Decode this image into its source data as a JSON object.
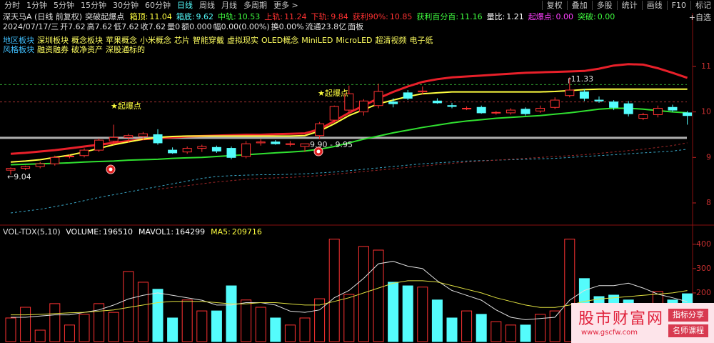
{
  "toolbar": {
    "left": [
      "分时",
      "1分钟",
      "5分钟",
      "15分钟",
      "30分钟",
      "60分钟",
      "日线",
      "周线",
      "月线",
      "多周期",
      "更多 >"
    ],
    "right": [
      "复权",
      "叠加",
      "多股",
      "统计",
      "画线",
      "F10",
      "标记"
    ],
    "extra": "+自选"
  },
  "header": {
    "stock": "深天马A (日线 前复权)",
    "indicator": "突破起爆点",
    "fields": [
      {
        "label": "箱顶:",
        "value": "11.04",
        "color": "#ffff40"
      },
      {
        "label": "箱底:",
        "value": "9.62",
        "color": "#54fcfc"
      },
      {
        "label": "中轨:",
        "value": "10.53",
        "color": "#40ff40"
      },
      {
        "label": "上轨:",
        "value": "11.24",
        "color": "#ff3232"
      },
      {
        "label": "下轨:",
        "value": "9.84",
        "color": "#ff3232"
      },
      {
        "label": "获利90%:",
        "value": "10.85",
        "color": "#ff3232"
      },
      {
        "label": "获利百分百:",
        "value": "11.16",
        "color": "#40ff40"
      },
      {
        "label": "量比:",
        "value": "1.21",
        "color": "#ffffff"
      },
      {
        "label": "起爆点:",
        "value": "0.00",
        "color": "#ff40ff"
      },
      {
        "label": "突破:",
        "value": "0.00",
        "color": "#40ff40"
      }
    ],
    "info": [
      "2024/07/17/三",
      "开7.62",
      "高7.62",
      "低7.62",
      "收7.62",
      "量0",
      "额0.000",
      "幅0.00(0.00%)",
      "换0.00%",
      "流通23.8亿",
      "面板"
    ],
    "tags": [
      [
        "地区板块",
        "深圳板块",
        "概念板块",
        "苹果概念",
        "小米概念",
        "芯片",
        "智能穿戴",
        "虚拟现实",
        "OLED概念",
        "MiniLED",
        "MicroLED",
        "超清视频",
        "电子纸"
      ],
      [
        "风格板块",
        "融资融券",
        "破净资产",
        "深股通标的"
      ]
    ]
  },
  "chart_data": [
    {
      "type": "candlestick",
      "up_color": "#ff3232",
      "down_color": "#54fcfc",
      "open": [
        8.72,
        8.76,
        8.8,
        8.86,
        9.02,
        9.04,
        9.16,
        9.36,
        9.44,
        9.46,
        9.5,
        9.16,
        9.12,
        9.2,
        9.22,
        9.2,
        9.02,
        9.32,
        9.34,
        9.3,
        9.24,
        9.48,
        9.82,
        10.04,
        10.0,
        10.14,
        10.22,
        10.42,
        10.44,
        10.24,
        10.14,
        10.08,
        10.1,
        9.98,
        9.98,
        10.06,
        10.02,
        10.1,
        10.36,
        10.44,
        10.26,
        10.22,
        10.18,
        9.86,
        9.94,
        10.1,
        9.98
      ],
      "high": [
        8.78,
        8.82,
        8.9,
        9.04,
        9.06,
        9.2,
        9.42,
        9.72,
        9.52,
        9.56,
        9.62,
        9.22,
        9.24,
        9.28,
        9.26,
        9.24,
        9.36,
        9.4,
        9.38,
        9.36,
        9.3,
        9.78,
        10.14,
        10.58,
        10.28,
        10.62,
        10.3,
        10.48,
        10.56,
        10.3,
        10.2,
        10.12,
        10.14,
        10.02,
        10.08,
        10.1,
        10.14,
        10.32,
        10.76,
        10.5,
        10.34,
        10.26,
        10.24,
        9.98,
        10.14,
        10.16,
        10.02
      ],
      "low": [
        8.62,
        8.72,
        8.76,
        8.82,
        8.98,
        9.0,
        9.12,
        9.28,
        9.32,
        9.38,
        9.28,
        9.08,
        9.08,
        9.12,
        9.1,
        8.96,
        8.98,
        9.26,
        9.28,
        9.24,
        9.12,
        9.4,
        9.76,
        9.98,
        9.92,
        10.08,
        10.1,
        10.26,
        10.38,
        10.18,
        10.08,
        10.04,
        9.96,
        9.94,
        9.94,
        9.92,
        9.98,
        10.06,
        10.32,
        10.24,
        10.2,
        10.04,
        9.9,
        9.82,
        9.88,
        10.0,
        9.72
      ],
      "close": [
        8.76,
        8.8,
        8.86,
        9.0,
        9.03,
        9.16,
        9.38,
        9.44,
        9.48,
        9.52,
        9.32,
        9.1,
        9.2,
        9.24,
        9.14,
        9.0,
        9.3,
        9.34,
        9.3,
        9.3,
        9.3,
        9.74,
        10.12,
        10.4,
        10.24,
        10.45,
        10.18,
        10.3,
        10.46,
        10.2,
        10.12,
        10.08,
        9.98,
        9.99,
        10.04,
        9.96,
        10.08,
        10.26,
        10.48,
        10.3,
        10.24,
        10.1,
        9.96,
        9.94,
        10.08,
        10.04,
        9.92
      ],
      "lines": [
        {
          "color": "#e8202a",
          "width": 3,
          "dash": false,
          "values": [
            9.08,
            9.1,
            9.13,
            9.16,
            9.2,
            9.24,
            9.28,
            9.32,
            9.36,
            9.4,
            9.42,
            9.44,
            9.46,
            9.47,
            9.48,
            9.49,
            9.5,
            9.5,
            9.51,
            9.52,
            9.53,
            9.62,
            9.8,
            9.98,
            10.14,
            10.3,
            10.44,
            10.56,
            10.66,
            10.72,
            10.76,
            10.78,
            10.8,
            10.82,
            10.84,
            10.86,
            10.87,
            10.88,
            10.89,
            10.9,
            10.95,
            11.02,
            11.05,
            11.04,
            10.96,
            10.86,
            10.75
          ]
        },
        {
          "color": "#ffff40",
          "width": 2,
          "dash": false,
          "values": [
            8.9,
            8.92,
            8.95,
            9.0,
            9.05,
            9.12,
            9.2,
            9.28,
            9.34,
            9.4,
            9.44,
            9.46,
            9.47,
            9.47,
            9.47,
            9.47,
            9.47,
            9.47,
            9.47,
            9.47,
            9.48,
            9.58,
            9.74,
            9.92,
            10.05,
            10.18,
            10.26,
            10.34,
            10.4,
            10.42,
            10.44,
            10.44,
            10.44,
            10.44,
            10.44,
            10.44,
            10.44,
            10.45,
            10.47,
            10.49,
            10.5,
            10.5,
            10.5,
            10.5,
            10.5,
            10.5,
            10.5
          ]
        },
        {
          "color": "#30e030",
          "width": 2,
          "dash": false,
          "values": [
            8.84,
            8.85,
            8.86,
            8.87,
            8.88,
            8.9,
            8.91,
            8.92,
            8.94,
            8.95,
            8.96,
            8.98,
            8.99,
            9.0,
            9.02,
            9.04,
            9.06,
            9.08,
            9.1,
            9.12,
            9.14,
            9.18,
            9.24,
            9.32,
            9.4,
            9.47,
            9.54,
            9.6,
            9.66,
            9.71,
            9.76,
            9.8,
            9.83,
            9.86,
            9.88,
            9.9,
            9.92,
            9.95,
            9.98,
            10.02,
            10.06,
            10.08,
            10.08,
            10.06,
            10.03,
            10.0,
            9.98
          ]
        },
        {
          "color": "#3aa8c8",
          "width": 1,
          "dash": true,
          "values": [
            7.78,
            7.82,
            7.86,
            7.92,
            7.98,
            8.05,
            8.12,
            8.18,
            8.24,
            8.3,
            8.36,
            8.42,
            8.48,
            8.54,
            8.58,
            8.6,
            8.61,
            8.62,
            8.62,
            8.63,
            8.64,
            8.66,
            8.68,
            8.71,
            8.74,
            8.77,
            8.8,
            8.83,
            8.86,
            8.88,
            8.9,
            8.92,
            8.93,
            8.94,
            8.95,
            8.96,
            8.97,
            8.98,
            9.0,
            9.02,
            9.04,
            9.06,
            9.08,
            9.1,
            9.12,
            9.14,
            9.18
          ]
        },
        {
          "color": "#a02828",
          "width": 1,
          "dash": true,
          "values": [
            null,
            null,
            null,
            null,
            null,
            null,
            null,
            null,
            null,
            null,
            8.3,
            8.34,
            8.38,
            8.42,
            8.46,
            8.49,
            8.52,
            8.54,
            8.55,
            8.56,
            8.58,
            8.6,
            8.63,
            8.66,
            8.69,
            8.72,
            8.75,
            8.78,
            8.81,
            8.84,
            8.87,
            8.9,
            8.92,
            8.94,
            8.96,
            8.98,
            9.0,
            9.02,
            9.04,
            9.06,
            9.09,
            9.12,
            9.15,
            9.18,
            9.22,
            9.26,
            9.32
          ]
        }
      ],
      "levels": [
        {
          "value": 9.43,
          "color": "#b0b0b0",
          "dash": false
        },
        {
          "value": 10.6,
          "color": "#30a030",
          "dash": true
        },
        {
          "value": 10.22,
          "color": "#a03030",
          "dash": true
        }
      ],
      "annotations": [
        "★起爆点",
        "★起爆点",
        "9.90 - 9.95",
        "←9.04",
        "┌11.33"
      ],
      "ylim": [
        7.56,
        12.02
      ],
      "yticks": [
        8,
        9,
        10,
        11
      ]
    },
    {
      "type": "bar",
      "title": "VOL-TDX(5,10)",
      "fields": [
        {
          "label": "VOLUME:",
          "value": "196510",
          "color": "#ffffff"
        },
        {
          "label": "MAVOL1:",
          "value": "164299",
          "color": "#ffffff"
        },
        {
          "label": "MA5:",
          "value": "209716",
          "color": "#ffff40"
        }
      ],
      "values": [
        97,
        141,
        47,
        156,
        68,
        112,
        156,
        120,
        288,
        244,
        215,
        97,
        171,
        126,
        126,
        229,
        171,
        141,
        97,
        68,
        97,
        176,
        421,
        194,
        391,
        376,
        244,
        229,
        224,
        171,
        97,
        126,
        112,
        82,
        68,
        68,
        112,
        126,
        421,
        259,
        185,
        191,
        171,
        141,
        206,
        171,
        196.51
      ],
      "lines": [
        {
          "color": "#e0e0e0",
          "values": [
            100,
            100,
            105,
            110,
            110,
            120,
            130,
            150,
            175,
            190,
            200,
            190,
            180,
            170,
            150,
            150,
            160,
            160,
            150,
            125,
            120,
            130,
            180,
            210,
            260,
            320,
            330,
            310,
            300,
            250,
            210,
            190,
            170,
            130,
            100,
            90,
            95,
            100,
            170,
            210,
            230,
            230,
            240,
            220,
            195,
            180,
            164.3
          ]
        },
        {
          "color": "#e0e040",
          "values": [
            110,
            110,
            112,
            115,
            118,
            120,
            125,
            130,
            140,
            150,
            160,
            165,
            165,
            165,
            160,
            155,
            155,
            160,
            160,
            155,
            150,
            150,
            165,
            180,
            200,
            220,
            240,
            250,
            250,
            245,
            230,
            215,
            200,
            180,
            165,
            150,
            140,
            140,
            150,
            165,
            175,
            180,
            185,
            190,
            195,
            200,
            209.7
          ]
        }
      ],
      "ylim": [
        0,
        470
      ],
      "yticks": [
        200,
        300,
        400
      ]
    }
  ],
  "watermark": {
    "title": "股市财富网",
    "url": "www.gscfw.com",
    "buttons": [
      "指标分享",
      "名师课程"
    ]
  }
}
